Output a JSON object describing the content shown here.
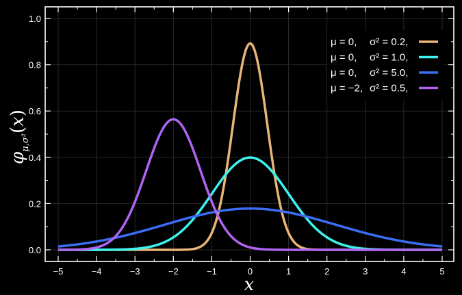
{
  "chart_data": {
    "type": "line",
    "xlabel": "x",
    "ylabel": "φμ,σ²(x)",
    "xlim": [
      -5,
      5
    ],
    "ylim": [
      0,
      1.0
    ],
    "grid": true,
    "legend_position": "top-right",
    "x_ticks": [
      "−5",
      "−4",
      "−3",
      "−2",
      "−1",
      "0",
      "1",
      "2",
      "3",
      "4",
      "5"
    ],
    "y_ticks": [
      "0.0",
      "0.2",
      "0.4",
      "0.6",
      "0.8",
      "1.0"
    ],
    "series": [
      {
        "mu_label": "μ = 0,",
        "sigma_label": "σ² = 0.2,",
        "mu": 0,
        "variance": 0.2,
        "color": "#E8B676",
        "peak": 0.892
      },
      {
        "mu_label": "μ = 0,",
        "sigma_label": "σ² = 1.0,",
        "mu": 0,
        "variance": 1.0,
        "color": "#3EF3EE",
        "peak": 0.399
      },
      {
        "mu_label": "μ = 0,",
        "sigma_label": "σ² = 5.0,",
        "mu": 0,
        "variance": 5.0,
        "color": "#3B6EF5",
        "peak": 0.178
      },
      {
        "mu_label": "μ = −2,",
        "sigma_label": "σ² = 0.5,",
        "mu": -2,
        "variance": 0.5,
        "color": "#B064F2",
        "peak": 0.564
      }
    ],
    "colors": {
      "background": "#000000",
      "axes": "#ffffff",
      "grid": "#2a2a2a"
    }
  }
}
